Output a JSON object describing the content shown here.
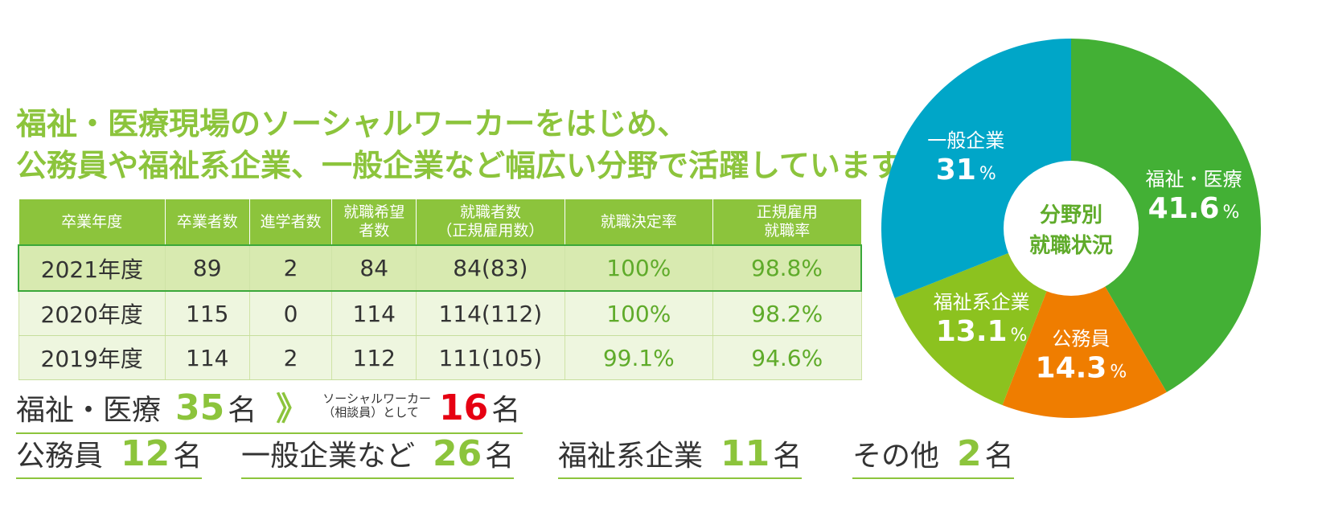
{
  "headline": {
    "line1": "福祉・医療現場のソーシャルワーカーをはじめ、",
    "line2": "公務員や福祉系企業、一般企業など幅広い分野で活躍しています。"
  },
  "colors": {
    "accent": "#8cc43c",
    "dark_green": "#3aa83a",
    "red": "#e60012"
  },
  "table": {
    "headers": [
      "卒業年度",
      "卒業者数",
      "進学者数",
      "就職希望\n者数",
      "就職者数\n（正規雇用数）",
      "就職決定率",
      "正規雇用\n就職率"
    ],
    "rows": [
      [
        "2021年度",
        "89",
        "2",
        "84",
        "84(83)",
        "100%",
        "98.8%"
      ],
      [
        "2020年度",
        "115",
        "0",
        "114",
        "114(112)",
        "100%",
        "98.2%"
      ],
      [
        "2019年度",
        "114",
        "2",
        "112",
        "111(105)",
        "99.1%",
        "94.6%"
      ]
    ]
  },
  "summary": {
    "welfare": {
      "label": "福祉・医療",
      "count": "35",
      "unit": "名",
      "arrow": "》",
      "sub_label": "ソーシャルワーカー\n（相談員）として",
      "sub_count": "16",
      "sub_unit": "名"
    },
    "items": [
      {
        "label": "公務員",
        "count": "12",
        "unit": "名"
      },
      {
        "label": "一般企業など",
        "count": "26",
        "unit": "名"
      },
      {
        "label": "福祉系企業",
        "count": "11",
        "unit": "名"
      },
      {
        "label": "その他",
        "count": "2",
        "unit": "名"
      }
    ]
  },
  "chart_data": {
    "type": "pie",
    "title": "",
    "center_label_line1": "分野別",
    "center_label_line2": "就職状況",
    "unit": "%",
    "slices": [
      {
        "name": "福祉・医療",
        "value": 41.6,
        "label": "41.6",
        "color": "#43b035"
      },
      {
        "name": "公務員",
        "value": 14.3,
        "label": "14.3",
        "color": "#ef7d00"
      },
      {
        "name": "福祉系企業",
        "value": 13.1,
        "label": "13.1",
        "color": "#8cc21f"
      },
      {
        "name": "一般企業",
        "value": 31,
        "label": "31",
        "color": "#00a6c8"
      }
    ]
  }
}
